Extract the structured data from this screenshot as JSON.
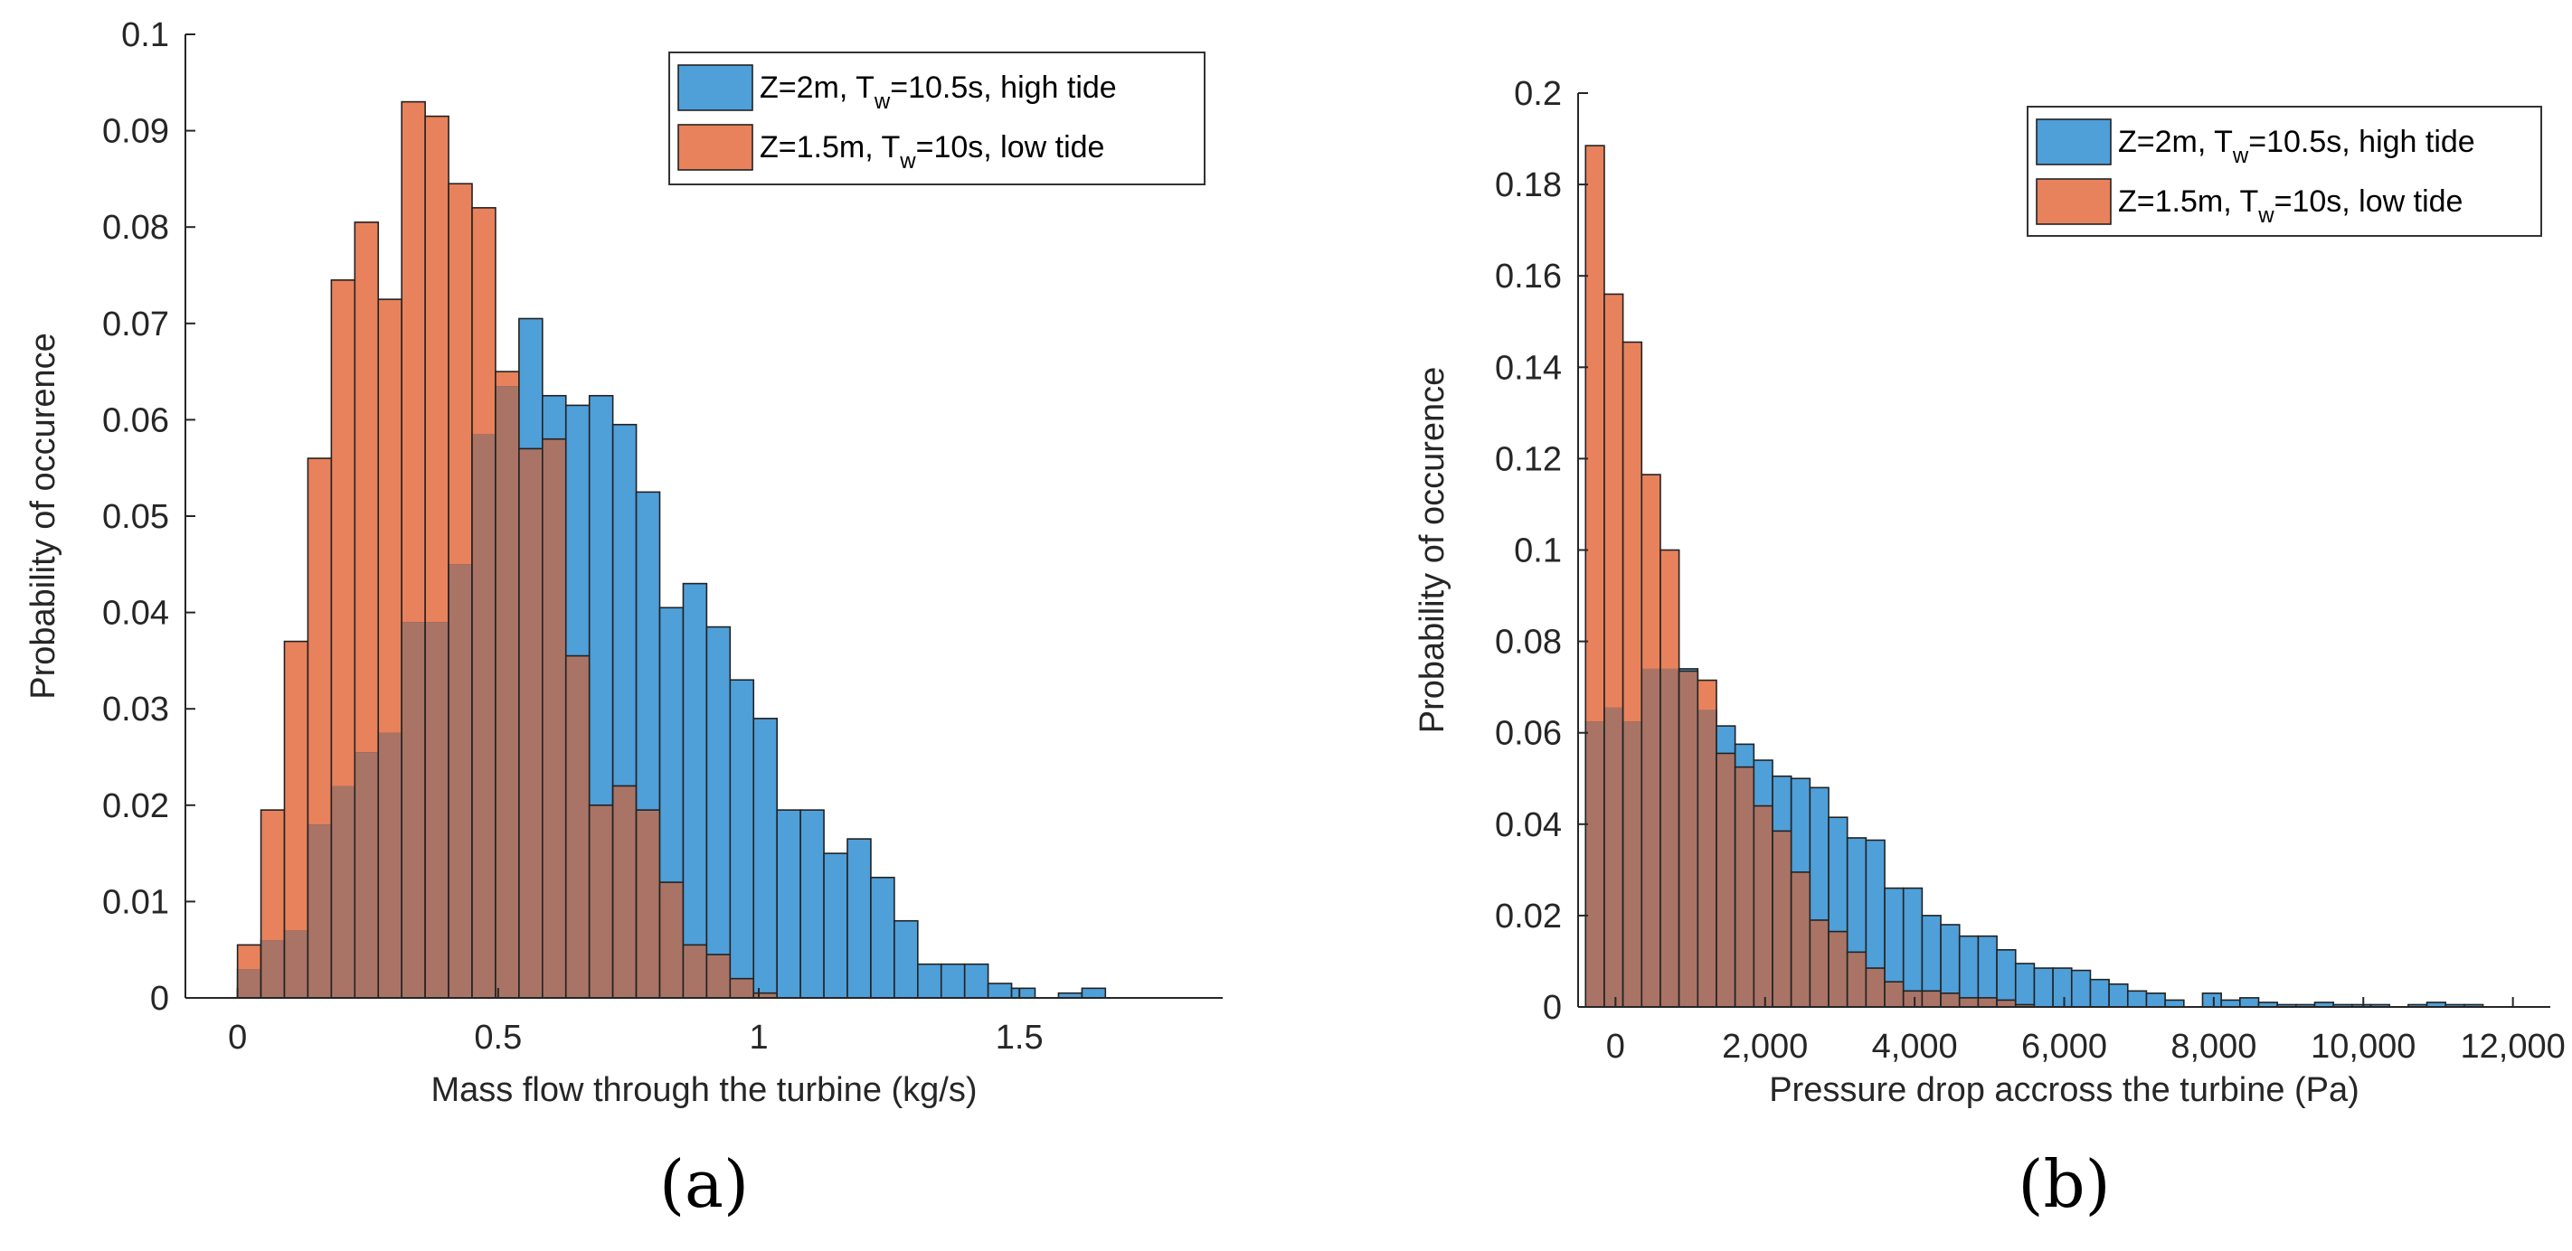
{
  "colors": {
    "series1": "#4f9fd9",
    "series2": "#e8825c",
    "overlap": "#a97466",
    "edge": "#222222",
    "axis": "#262626"
  },
  "chart_data": [
    {
      "type": "bar",
      "panel_label": "(a)",
      "xlabel": "Mass flow through the turbine (kg/s)",
      "ylabel": "Probability of occurence",
      "xlim": [
        -0.1,
        1.89
      ],
      "ylim": [
        0,
        0.1
      ],
      "xticks": [
        0,
        0.5,
        1,
        1.5
      ],
      "xticklabels": [
        "0",
        "0.5",
        "1",
        "1.5"
      ],
      "yticks": [
        0,
        0.01,
        0.02,
        0.03,
        0.04,
        0.05,
        0.06,
        0.07,
        0.08,
        0.09,
        0.1
      ],
      "yticklabels": [
        "0",
        "0.01",
        "0.02",
        "0.03",
        "0.04",
        "0.05",
        "0.06",
        "0.07",
        "0.08",
        "0.09",
        "0.1"
      ],
      "legend_position": "top-right",
      "bin_start": 0.0,
      "bin_width": 0.045,
      "series": [
        {
          "name": "Z=2m, T",
          "name_sub": "w",
          "name_rest": "=10.5s, high tide",
          "color": "series1",
          "values": [
            0.003,
            0.006,
            0.007,
            0.018,
            0.022,
            0.0255,
            0.0275,
            0.039,
            0.039,
            0.045,
            0.0585,
            0.0635,
            0.0705,
            0.0625,
            0.0615,
            0.0625,
            0.0595,
            0.0525,
            0.0405,
            0.043,
            0.0385,
            0.033,
            0.029,
            0.0195,
            0.0195,
            0.015,
            0.0165,
            0.0125,
            0.008,
            0.0035,
            0.0035,
            0.0035,
            0.0015,
            0.001,
            0.0,
            0.0005,
            0.001
          ]
        },
        {
          "name": "Z=1.5m, T",
          "name_sub": "w",
          "name_rest": "=10s, low tide",
          "color": "series2",
          "values": [
            0.0055,
            0.0195,
            0.037,
            0.056,
            0.0745,
            0.0805,
            0.0725,
            0.093,
            0.0915,
            0.0845,
            0.082,
            0.065,
            0.057,
            0.058,
            0.0355,
            0.02,
            0.022,
            0.0195,
            0.012,
            0.0055,
            0.0045,
            0.002,
            0.0005
          ]
        }
      ]
    },
    {
      "type": "bar",
      "panel_label": "(b)",
      "xlabel": "Pressure drop accross the turbine (Pa)",
      "ylabel": "Probability of occurence",
      "xlim": [
        -500,
        12500
      ],
      "ylim": [
        0,
        0.2
      ],
      "xticks": [
        0,
        2000,
        4000,
        6000,
        8000,
        10000,
        12000
      ],
      "xticklabels": [
        "0",
        "2,000",
        "4,000",
        "6,000",
        "8,000",
        "10,000",
        "12,000"
      ],
      "yticks": [
        0,
        0.02,
        0.04,
        0.06,
        0.08,
        0.1,
        0.12,
        0.14,
        0.16,
        0.18,
        0.2
      ],
      "yticklabels": [
        "0",
        "0.02",
        "0.04",
        "0.06",
        "0.08",
        "0.1",
        "0.12",
        "0.14",
        "0.16",
        "0.18",
        "0.2"
      ],
      "legend_position": "top-right",
      "bin_start": -400,
      "bin_width": 250,
      "series": [
        {
          "name": "Z=2m, T",
          "name_sub": "w",
          "name_rest": "=10.5s, high tide",
          "color": "series1",
          "values": [
            0.0625,
            0.0655,
            0.0625,
            0.074,
            0.074,
            0.074,
            0.065,
            0.0615,
            0.0575,
            0.054,
            0.0505,
            0.05,
            0.048,
            0.0415,
            0.037,
            0.0365,
            0.026,
            0.026,
            0.02,
            0.018,
            0.0155,
            0.0155,
            0.0125,
            0.0095,
            0.0085,
            0.0085,
            0.008,
            0.006,
            0.005,
            0.0035,
            0.003,
            0.0015,
            0.0,
            0.003,
            0.0015,
            0.002,
            0.001,
            0.0005,
            0.0005,
            0.001,
            0.0005,
            0.0005,
            0.0005,
            0.0,
            0.0005,
            0.001,
            0.0005,
            0.0005
          ]
        },
        {
          "name": "Z=1.5m, T",
          "name_sub": "w",
          "name_rest": "=10s, low tide",
          "color": "series2",
          "values": [
            0.1885,
            0.156,
            0.1455,
            0.1165,
            0.1,
            0.0735,
            0.0715,
            0.0555,
            0.0525,
            0.044,
            0.0385,
            0.0295,
            0.019,
            0.0165,
            0.012,
            0.0085,
            0.0055,
            0.0035,
            0.0035,
            0.003,
            0.002,
            0.002,
            0.0015,
            0.0005
          ]
        }
      ]
    }
  ]
}
